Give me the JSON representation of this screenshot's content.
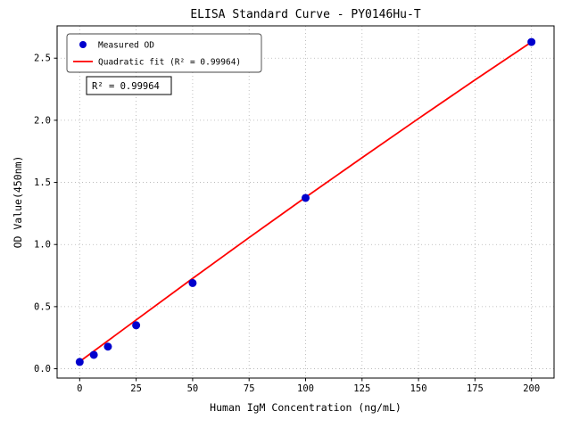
{
  "figure": {
    "background": "#ffffff"
  },
  "chart_data": {
    "type": "scatter",
    "title": "ELISA Standard Curve - PY0146Hu-T",
    "xlabel": "Human IgM Concentration (ng/mL)",
    "ylabel": "OD Value(450nm)",
    "xlim": [
      -10,
      210
    ],
    "ylim": [
      -0.075,
      2.76
    ],
    "x_ticks": [
      0,
      25,
      50,
      75,
      100,
      125,
      150,
      175,
      200
    ],
    "x_tick_labels": [
      "0",
      "25",
      "50",
      "75",
      "100",
      "125",
      "150",
      "175",
      "200"
    ],
    "y_ticks": [
      0.0,
      0.5,
      1.0,
      1.5,
      2.0,
      2.5
    ],
    "y_tick_labels": [
      "0.0",
      "0.5",
      "1.0",
      "1.5",
      "2.0",
      "2.5"
    ],
    "grid": true,
    "grid_color": "#b0b0b0",
    "legend_position": "upper-left",
    "annotation": "R² = 0.99964",
    "series": [
      {
        "name": "Measured OD",
        "type": "scatter",
        "color": "#0000cd",
        "x": [
          0,
          6.25,
          12.5,
          25,
          50,
          100,
          200
        ],
        "y": [
          0.055,
          0.112,
          0.178,
          0.35,
          0.69,
          1.375,
          2.63
        ]
      },
      {
        "name": "Quadratic fit (R² = 0.99964)",
        "type": "line",
        "color": "#ff0000",
        "x": [
          0,
          25,
          50,
          75,
          100,
          125,
          150,
          175,
          200
        ],
        "y": [
          0.058,
          0.393,
          0.727,
          1.056,
          1.38,
          1.699,
          2.014,
          2.325,
          2.63
        ]
      }
    ]
  }
}
